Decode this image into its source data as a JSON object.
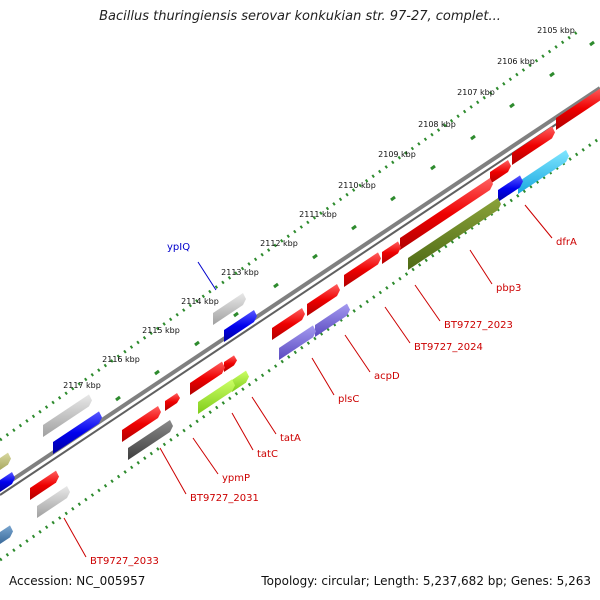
{
  "title": "Bacillus thuringiensis serovar konkukian str. 97-27, complet...",
  "footer": {
    "accession": "Accession: NC_005957",
    "topology": "Topology: circular; Length: 5,237,682 bp; Genes: 5,263"
  },
  "colors": {
    "backbone": "#808080",
    "tick_dots": "#2e8b2e",
    "label_red": "#cc0000",
    "label_blue": "#0000cc"
  },
  "ticks": [
    {
      "label": "2105 kbp"
    },
    {
      "label": "2106 kbp"
    },
    {
      "label": "2107 kbp"
    },
    {
      "label": "2108 kbp"
    },
    {
      "label": "2109 kbp"
    },
    {
      "label": "2110 kbp"
    },
    {
      "label": "2111 kbp"
    },
    {
      "label": "2112 kbp"
    },
    {
      "label": "2113 kbp"
    },
    {
      "label": "2114 kbp"
    },
    {
      "label": "2115 kbp"
    },
    {
      "label": "2116 kbp"
    },
    {
      "label": "2117 kbp"
    }
  ],
  "gene_labels": [
    {
      "name": "dfrA",
      "color": "#cc0000"
    },
    {
      "name": "pbp3",
      "color": "#cc0000"
    },
    {
      "name": "BT9727_2023",
      "color": "#cc0000"
    },
    {
      "name": "BT9727_2024",
      "color": "#cc0000"
    },
    {
      "name": "acpD",
      "color": "#cc0000"
    },
    {
      "name": "plsC",
      "color": "#cc0000"
    },
    {
      "name": "tatA",
      "color": "#cc0000"
    },
    {
      "name": "tatC",
      "color": "#cc0000"
    },
    {
      "name": "ypmP",
      "color": "#cc0000"
    },
    {
      "name": "BT9727_2031",
      "color": "#cc0000"
    },
    {
      "name": "BT9727_2033",
      "color": "#cc0000"
    },
    {
      "name": "ypIQ",
      "color": "#0000cc"
    }
  ]
}
